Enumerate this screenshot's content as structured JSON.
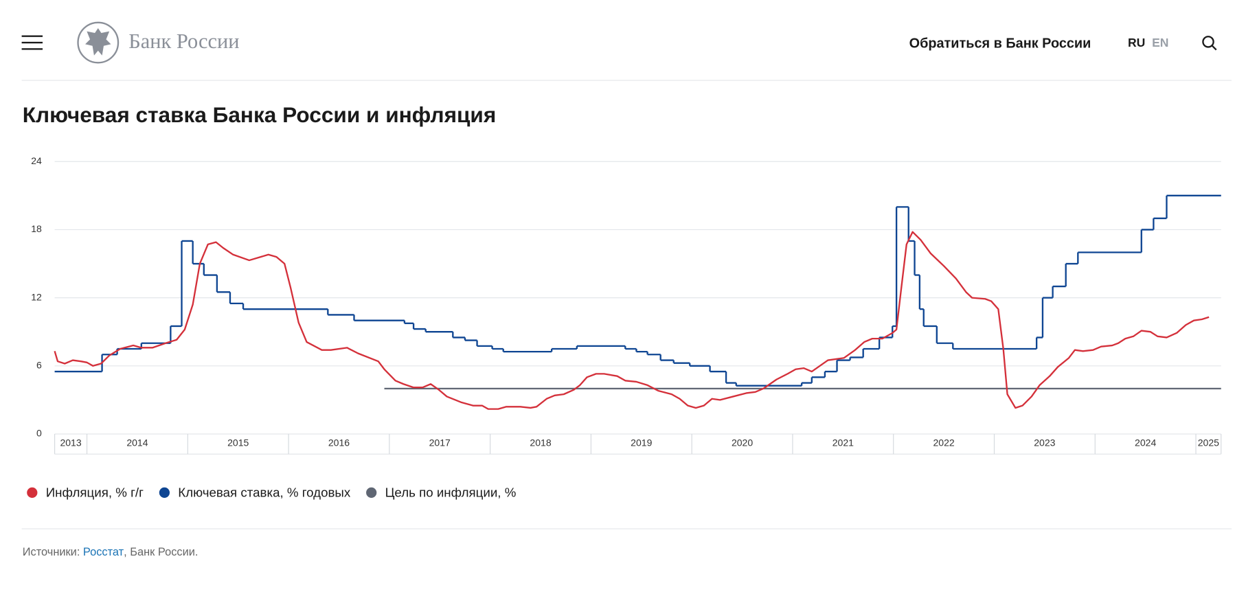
{
  "header": {
    "logo_text": "Банк России",
    "contact": "Обратиться в Банк России",
    "lang_ru": "RU",
    "lang_en": "EN"
  },
  "chart_data": {
    "type": "line",
    "title": "Ключевая ставка Банка России и инфляция",
    "ylim": [
      0,
      24
    ],
    "yticks": [
      0,
      6,
      12,
      18,
      24
    ],
    "grid": true,
    "xlim": [
      2013.68,
      2025.25
    ],
    "xticks": [
      2014,
      2015,
      2016,
      2017,
      2018,
      2019,
      2020,
      2021,
      2022,
      2023,
      2024,
      2025
    ],
    "categories": [
      "2013",
      "2014",
      "2015",
      "2016",
      "2017",
      "2018",
      "2019",
      "2020",
      "2021",
      "2022",
      "2023",
      "2024",
      "2025"
    ],
    "legend": "bottom-left",
    "series": [
      {
        "name": "Инфляция, % г/г",
        "color": "#d4303a",
        "step": false,
        "x": [
          2013.68,
          2013.71,
          2013.78,
          2013.86,
          2013.94,
          2014.0,
          2014.06,
          2014.14,
          2014.22,
          2014.33,
          2014.46,
          2014.54,
          2014.65,
          2014.78,
          2014.89,
          2014.97,
          2015.05,
          2015.12,
          2015.2,
          2015.28,
          2015.35,
          2015.45,
          2015.61,
          2015.8,
          2015.88,
          2015.96,
          2016.02,
          2016.1,
          2016.18,
          2016.33,
          2016.42,
          2016.58,
          2016.69,
          2016.89,
          2016.95,
          2017.06,
          2017.14,
          2017.24,
          2017.33,
          2017.41,
          2017.49,
          2017.57,
          2017.71,
          2017.83,
          2017.92,
          2017.98,
          2018.08,
          2018.16,
          2018.3,
          2018.4,
          2018.46,
          2018.56,
          2018.64,
          2018.73,
          2018.83,
          2018.89,
          2018.96,
          2019.05,
          2019.13,
          2019.26,
          2019.34,
          2019.45,
          2019.56,
          2019.67,
          2019.8,
          2019.88,
          2019.96,
          2020.04,
          2020.12,
          2020.2,
          2020.28,
          2020.41,
          2020.54,
          2020.63,
          2020.71,
          2020.84,
          2020.95,
          2021.03,
          2021.11,
          2021.19,
          2021.27,
          2021.35,
          2021.51,
          2021.62,
          2021.71,
          2021.79,
          2021.89,
          2021.99,
          2022.03,
          2022.08,
          2022.13,
          2022.19,
          2022.27,
          2022.37,
          2022.5,
          2022.62,
          2022.72,
          2022.78,
          2022.91,
          2022.97,
          2023.04,
          2023.09,
          2023.13,
          2023.21,
          2023.28,
          2023.37,
          2023.45,
          2023.55,
          2023.63,
          2023.74,
          2023.8,
          2023.88,
          2023.98,
          2024.06,
          2024.17,
          2024.23,
          2024.3,
          2024.38,
          2024.46,
          2024.55,
          2024.62,
          2024.71,
          2024.81,
          2024.9,
          2024.98,
          2025.06,
          2025.13
        ],
        "values": [
          7.3,
          6.4,
          6.2,
          6.5,
          6.4,
          6.3,
          6.0,
          6.2,
          6.9,
          7.5,
          7.8,
          7.6,
          7.6,
          8.0,
          8.3,
          9.2,
          11.4,
          15.0,
          16.7,
          16.9,
          16.4,
          15.8,
          15.3,
          15.8,
          15.6,
          15.0,
          12.9,
          9.8,
          8.1,
          7.4,
          7.4,
          7.6,
          7.1,
          6.4,
          5.7,
          4.7,
          4.4,
          4.1,
          4.1,
          4.4,
          3.9,
          3.3,
          2.8,
          2.5,
          2.5,
          2.2,
          2.2,
          2.4,
          2.4,
          2.3,
          2.4,
          3.1,
          3.4,
          3.5,
          3.9,
          4.3,
          5.0,
          5.3,
          5.3,
          5.1,
          4.7,
          4.6,
          4.3,
          3.8,
          3.5,
          3.1,
          2.5,
          2.3,
          2.5,
          3.1,
          3.0,
          3.3,
          3.6,
          3.7,
          4.0,
          4.8,
          5.3,
          5.7,
          5.8,
          5.5,
          6.0,
          6.5,
          6.7,
          7.4,
          8.1,
          8.4,
          8.4,
          8.9,
          9.2,
          13.0,
          16.7,
          17.8,
          17.1,
          15.9,
          14.8,
          13.7,
          12.5,
          12.0,
          11.9,
          11.7,
          11.0,
          7.5,
          3.5,
          2.3,
          2.5,
          3.3,
          4.3,
          5.1,
          5.9,
          6.7,
          7.4,
          7.3,
          7.4,
          7.7,
          7.8,
          8.0,
          8.4,
          8.6,
          9.1,
          9.0,
          8.6,
          8.5,
          8.9,
          9.6,
          10.0,
          10.1,
          10.3
        ]
      },
      {
        "name": "Ключевая ставка, % годовых",
        "color": "#0e4592",
        "step": true,
        "x": [
          2013.68,
          2014.15,
          2014.3,
          2014.54,
          2014.83,
          2014.94,
          2015.05,
          2015.16,
          2015.29,
          2015.42,
          2015.55,
          2016.39,
          2016.65,
          2017.15,
          2017.24,
          2017.36,
          2017.63,
          2017.75,
          2017.87,
          2018.02,
          2018.13,
          2018.61,
          2018.86,
          2019.34,
          2019.45,
          2019.56,
          2019.69,
          2019.82,
          2019.98,
          2020.18,
          2020.34,
          2020.44,
          2021.09,
          2021.19,
          2021.32,
          2021.44,
          2021.57,
          2021.7,
          2021.86,
          2021.99,
          2022.03,
          2022.15,
          2022.21,
          2022.26,
          2022.3,
          2022.43,
          2022.59,
          2023.42,
          2023.48,
          2023.58,
          2023.71,
          2023.83,
          2024.46,
          2024.58,
          2024.71
        ],
        "values": [
          5.5,
          7.0,
          7.5,
          8.0,
          9.5,
          17,
          15,
          14,
          12.5,
          11.5,
          11,
          10.5,
          10,
          9.75,
          9.25,
          9,
          8.5,
          8.25,
          7.75,
          7.5,
          7.25,
          7.5,
          7.75,
          7.5,
          7.25,
          7.0,
          6.5,
          6.25,
          6.0,
          5.5,
          4.5,
          4.25,
          4.5,
          5.0,
          5.5,
          6.5,
          6.75,
          7.5,
          8.5,
          9.5,
          20,
          17,
          14,
          11,
          9.5,
          8,
          7.5,
          8.5,
          12,
          13,
          15,
          16,
          18,
          19,
          21
        ]
      },
      {
        "name": "Цель по инфляции, %",
        "color": "#5f6673",
        "step": false,
        "x": [
          2016.95,
          2025.25
        ],
        "values": [
          4,
          4
        ]
      }
    ]
  },
  "footer": {
    "prefix": "Источники: ",
    "link": "Росстат",
    "suffix": ", Банк России."
  }
}
